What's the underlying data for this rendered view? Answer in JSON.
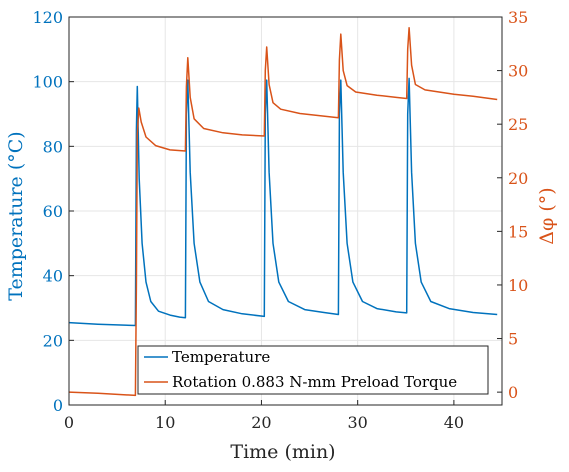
{
  "chart_data": {
    "type": "line",
    "xlabel": "Time (min)",
    "ylabel_left": "Temperature (°C)",
    "ylabel_right": "Δφ  (°)",
    "xlim": [
      0,
      45
    ],
    "ylim_left": [
      0,
      120
    ],
    "ylim_right": [
      -1.2,
      35
    ],
    "xticks": [
      0,
      10,
      20,
      30,
      40
    ],
    "yticks_left": [
      0,
      20,
      40,
      60,
      80,
      100,
      120
    ],
    "yticks_right": [
      0,
      5,
      10,
      15,
      20,
      25,
      30,
      35
    ],
    "grid": true,
    "legend_position": "bottom-right",
    "colors": {
      "temperature": "#0072BD",
      "rotation": "#D95319",
      "grid": "#e6e6e6"
    },
    "series": [
      {
        "name": "Temperature",
        "axis": "left",
        "points": [
          [
            0,
            25.5
          ],
          [
            3,
            25.0
          ],
          [
            6.9,
            24.6
          ],
          [
            7.0,
            85
          ],
          [
            7.1,
            98.5
          ],
          [
            7.3,
            70
          ],
          [
            7.6,
            50
          ],
          [
            8.0,
            38
          ],
          [
            8.5,
            32
          ],
          [
            9.3,
            29
          ],
          [
            10.5,
            27.8
          ],
          [
            11.5,
            27.2
          ],
          [
            12.1,
            27.0
          ],
          [
            12.2,
            90
          ],
          [
            12.35,
            100.5
          ],
          [
            12.6,
            72
          ],
          [
            13.0,
            50
          ],
          [
            13.6,
            38
          ],
          [
            14.5,
            32
          ],
          [
            16,
            29.5
          ],
          [
            18,
            28.2
          ],
          [
            20.3,
            27.4
          ],
          [
            20.4,
            90
          ],
          [
            20.55,
            100.5
          ],
          [
            20.8,
            72
          ],
          [
            21.2,
            50
          ],
          [
            21.8,
            38
          ],
          [
            22.8,
            32
          ],
          [
            24.5,
            29.5
          ],
          [
            26.5,
            28.6
          ],
          [
            28.0,
            28.0
          ],
          [
            28.1,
            90
          ],
          [
            28.25,
            100.5
          ],
          [
            28.5,
            72
          ],
          [
            28.9,
            50
          ],
          [
            29.5,
            38
          ],
          [
            30.5,
            32
          ],
          [
            32,
            29.8
          ],
          [
            34,
            28.8
          ],
          [
            35.1,
            28.5
          ],
          [
            35.2,
            90
          ],
          [
            35.35,
            101
          ],
          [
            35.6,
            72
          ],
          [
            36.0,
            50
          ],
          [
            36.6,
            38
          ],
          [
            37.6,
            32
          ],
          [
            39.5,
            29.8
          ],
          [
            42,
            28.6
          ],
          [
            44.5,
            28.0
          ]
        ]
      },
      {
        "name": "Rotation 0.883 N-mm Preload Torque",
        "axis": "right",
        "points": [
          [
            0,
            0
          ],
          [
            3,
            -0.1
          ],
          [
            6.9,
            -0.3
          ],
          [
            7.0,
            10
          ],
          [
            7.1,
            24.0
          ],
          [
            7.25,
            26.5
          ],
          [
            7.5,
            25.2
          ],
          [
            8.0,
            23.8
          ],
          [
            9.0,
            23.0
          ],
          [
            10.5,
            22.6
          ],
          [
            12.1,
            22.5
          ],
          [
            12.2,
            28.5
          ],
          [
            12.35,
            31.2
          ],
          [
            12.6,
            27.5
          ],
          [
            13.0,
            25.5
          ],
          [
            14.0,
            24.6
          ],
          [
            16.0,
            24.2
          ],
          [
            18.0,
            24.0
          ],
          [
            20.3,
            23.9
          ],
          [
            20.4,
            30.0
          ],
          [
            20.55,
            32.2
          ],
          [
            20.8,
            28.7
          ],
          [
            21.2,
            27.0
          ],
          [
            22.0,
            26.4
          ],
          [
            24.0,
            26.0
          ],
          [
            26.0,
            25.8
          ],
          [
            28.0,
            25.6
          ],
          [
            28.1,
            31.0
          ],
          [
            28.25,
            33.4
          ],
          [
            28.5,
            30.0
          ],
          [
            28.9,
            28.6
          ],
          [
            29.8,
            28.0
          ],
          [
            32.0,
            27.7
          ],
          [
            34.0,
            27.5
          ],
          [
            35.1,
            27.4
          ],
          [
            35.2,
            32.0
          ],
          [
            35.35,
            34.0
          ],
          [
            35.6,
            30.5
          ],
          [
            36.0,
            28.7
          ],
          [
            37.0,
            28.2
          ],
          [
            40.0,
            27.8
          ],
          [
            42.0,
            27.6
          ],
          [
            44.5,
            27.3
          ]
        ]
      }
    ]
  }
}
